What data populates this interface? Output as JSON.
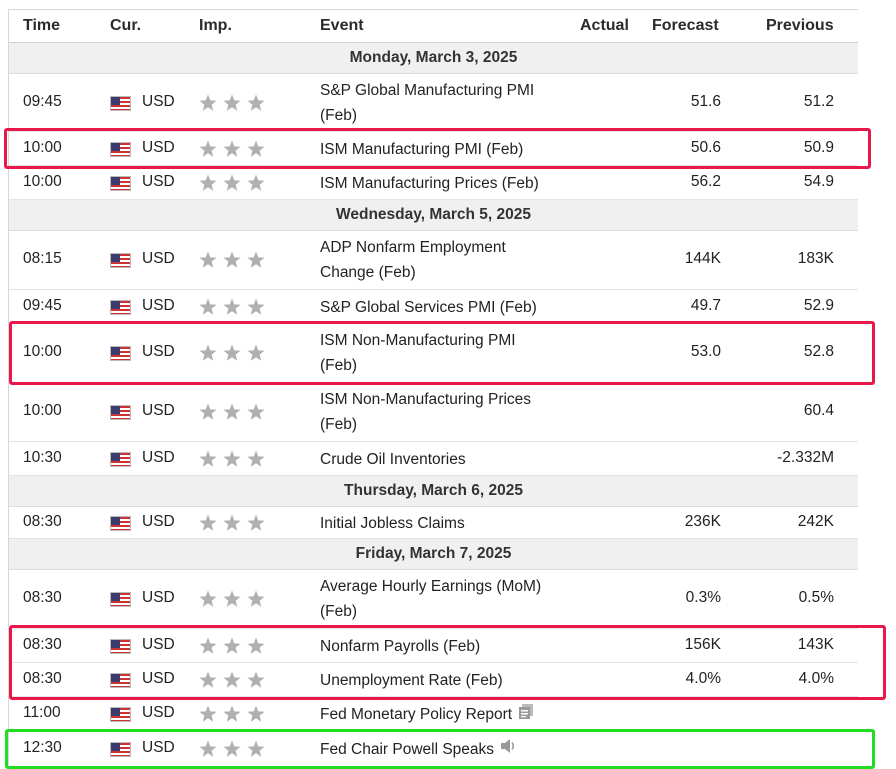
{
  "columns": {
    "time": "Time",
    "currency": "Cur.",
    "importance": "Imp.",
    "event": "Event",
    "actual": "Actual",
    "forecast": "Forecast",
    "previous": "Previous"
  },
  "days": [
    {
      "label": "Monday, March 3, 2025",
      "events": [
        {
          "time": "09:45",
          "currency": "USD",
          "event_line1": "S&P Global Manufacturing PMI",
          "event_line2": "(Feb)",
          "actual": "",
          "forecast": "51.6",
          "previous": "51.2"
        },
        {
          "time": "10:00",
          "currency": "USD",
          "event_line1": "ISM Manufacturing PMI (Feb)",
          "event_line2": "",
          "actual": "",
          "forecast": "50.6",
          "previous": "50.9"
        },
        {
          "time": "10:00",
          "currency": "USD",
          "event_line1": "ISM Manufacturing Prices (Feb)",
          "event_line2": "",
          "actual": "",
          "forecast": "56.2",
          "previous": "54.9"
        }
      ]
    },
    {
      "label": "Wednesday, March 5, 2025",
      "events": [
        {
          "time": "08:15",
          "currency": "USD",
          "event_line1": "ADP Nonfarm Employment",
          "event_line2": "Change (Feb)",
          "actual": "",
          "forecast": "144K",
          "previous": "183K"
        },
        {
          "time": "09:45",
          "currency": "USD",
          "event_line1": "S&P Global Services PMI (Feb)",
          "event_line2": "",
          "actual": "",
          "forecast": "49.7",
          "previous": "52.9"
        },
        {
          "time": "10:00",
          "currency": "USD",
          "event_line1": "ISM Non-Manufacturing PMI",
          "event_line2": "(Feb)",
          "actual": "",
          "forecast": "53.0",
          "previous": "52.8"
        },
        {
          "time": "10:00",
          "currency": "USD",
          "event_line1": "ISM Non-Manufacturing Prices",
          "event_line2": "(Feb)",
          "actual": "",
          "forecast": "",
          "previous": "60.4"
        },
        {
          "time": "10:30",
          "currency": "USD",
          "event_line1": "Crude Oil Inventories",
          "event_line2": "",
          "actual": "",
          "forecast": "",
          "previous": "-2.332M"
        }
      ]
    },
    {
      "label": "Thursday, March 6, 2025",
      "events": [
        {
          "time": "08:30",
          "currency": "USD",
          "event_line1": "Initial Jobless Claims",
          "event_line2": "",
          "actual": "",
          "forecast": "236K",
          "previous": "242K"
        }
      ]
    },
    {
      "label": "Friday, March 7, 2025",
      "events": [
        {
          "time": "08:30",
          "currency": "USD",
          "event_line1": "Average Hourly Earnings (MoM)",
          "event_line2": "(Feb)",
          "actual": "",
          "forecast": "0.3%",
          "previous": "0.5%"
        },
        {
          "time": "08:30",
          "currency": "USD",
          "event_line1": "Nonfarm Payrolls (Feb)",
          "event_line2": "",
          "actual": "",
          "forecast": "156K",
          "previous": "143K"
        },
        {
          "time": "08:30",
          "currency": "USD",
          "event_line1": "Unemployment Rate (Feb)",
          "event_line2": "",
          "actual": "",
          "forecast": "4.0%",
          "previous": "4.0%"
        },
        {
          "time": "11:00",
          "currency": "USD",
          "event_line1": "Fed Monetary Policy Report",
          "event_line2": "",
          "actual": "",
          "forecast": "",
          "previous": "",
          "icon": "document-icon"
        },
        {
          "time": "12:30",
          "currency": "USD",
          "event_line1": "Fed Chair Powell Speaks",
          "event_line2": "",
          "actual": "",
          "forecast": "",
          "previous": "",
          "icon": "speaker-icon"
        }
      ]
    }
  ],
  "colors": {
    "highlight_red": "#e8184a",
    "highlight_green": "#22dd22",
    "day_header_bg": "#f0f0f0",
    "star_inactive": "#b0b0b0"
  },
  "icons": {
    "flag": "us-flag-icon",
    "importance": "star-icon"
  }
}
